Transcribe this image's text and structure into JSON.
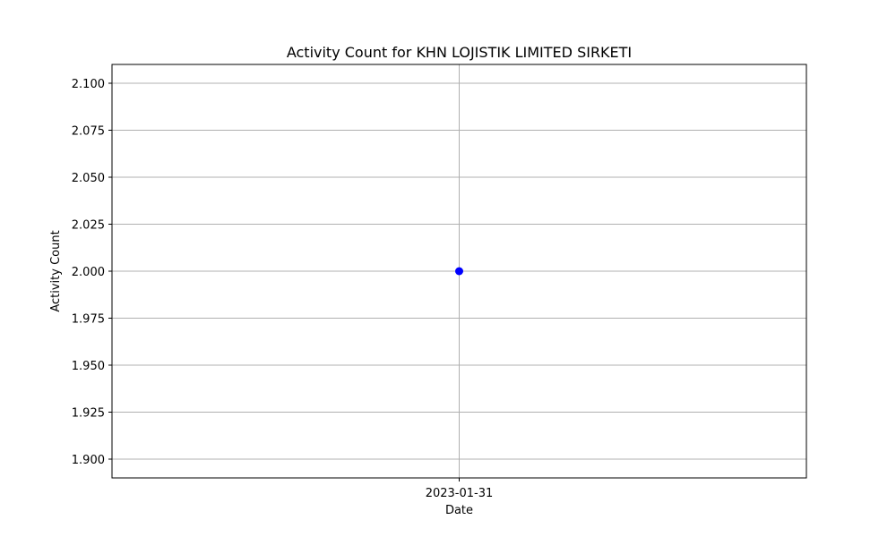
{
  "chart_data": {
    "type": "line",
    "title": "Activity Count for KHN LOJISTIK LIMITED SIRKETI",
    "xlabel": "Date",
    "ylabel": "Activity Count",
    "x": [
      "2023-01-31"
    ],
    "series": [
      {
        "values": [
          2.0
        ],
        "color": "#0000ff",
        "marker": "circle"
      }
    ],
    "ylim": [
      1.89,
      2.11
    ],
    "yticks": [
      1.9,
      1.925,
      1.95,
      1.975,
      2.0,
      2.025,
      2.05,
      2.075,
      2.1
    ],
    "ytick_labels": [
      "1.900",
      "1.925",
      "1.950",
      "1.975",
      "2.000",
      "2.025",
      "2.050",
      "2.075",
      "2.100"
    ],
    "xticks": [
      "2023-01-31"
    ],
    "grid": true
  }
}
